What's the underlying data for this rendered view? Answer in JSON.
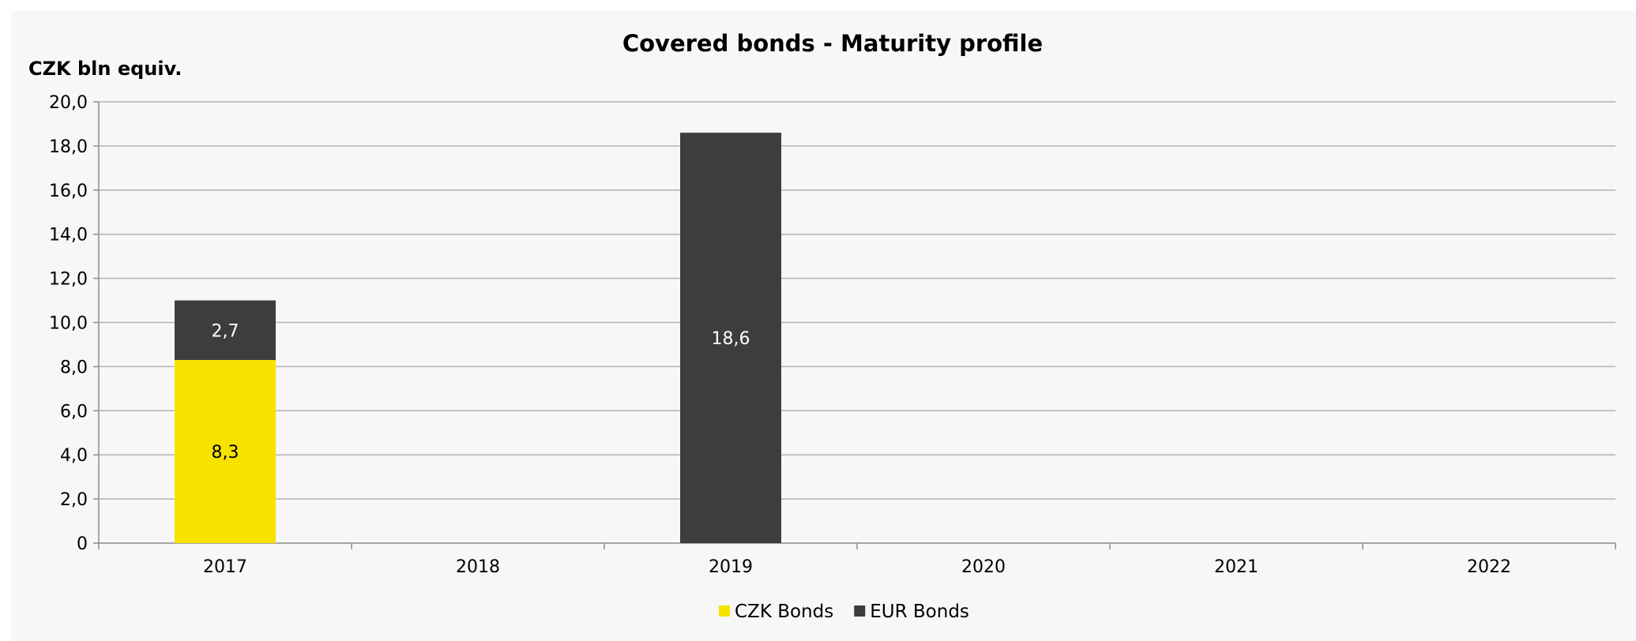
{
  "chart_data": {
    "type": "bar",
    "stacked": true,
    "title": "Covered bonds - Maturity profile",
    "unit_label": "CZK bln equiv.",
    "xlabel": "",
    "ylabel": "",
    "categories": [
      "2017",
      "2018",
      "2019",
      "2020",
      "2021",
      "2022"
    ],
    "series": [
      {
        "name": "CZK Bonds",
        "color": "#f7e200",
        "label_color": "#000000",
        "values": [
          8.3,
          0,
          0,
          0,
          0,
          0
        ],
        "labels": [
          "8,3",
          "",
          "",
          "",
          "",
          ""
        ]
      },
      {
        "name": "EUR Bonds",
        "color": "#3d3d3d",
        "label_color": "#ffffff",
        "values": [
          2.7,
          0,
          18.6,
          0,
          0,
          0
        ],
        "labels": [
          "2,7",
          "",
          "18,6",
          "",
          "",
          ""
        ]
      }
    ],
    "ylim": [
      0,
      20
    ],
    "yticks": [
      0,
      2,
      4,
      6,
      8,
      10,
      12,
      14,
      16,
      18,
      20
    ],
    "ytick_labels": [
      "0",
      "2,0",
      "4,0",
      "6,0",
      "8,0",
      "10,0",
      "12,0",
      "14,0",
      "16,0",
      "18,0",
      "20,0"
    ],
    "grid": true,
    "legend_position": "bottom"
  }
}
